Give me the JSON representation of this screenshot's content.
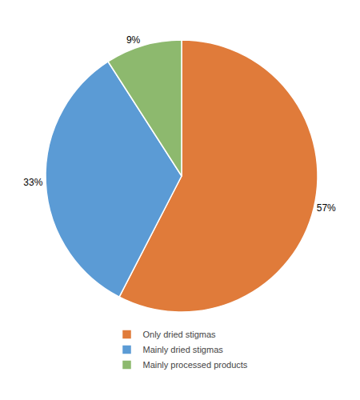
{
  "chart_data": {
    "type": "pie",
    "categories": [
      "Only dried stigmas",
      "Mainly dried stigmas",
      "Mainly processed products"
    ],
    "values": [
      57,
      33,
      9
    ],
    "value_labels": [
      "57%",
      "33%",
      "9%"
    ],
    "colors": [
      "#E07B3A",
      "#5B9BD5",
      "#8DB96E"
    ],
    "data_labels": true,
    "legend": "bottom"
  }
}
